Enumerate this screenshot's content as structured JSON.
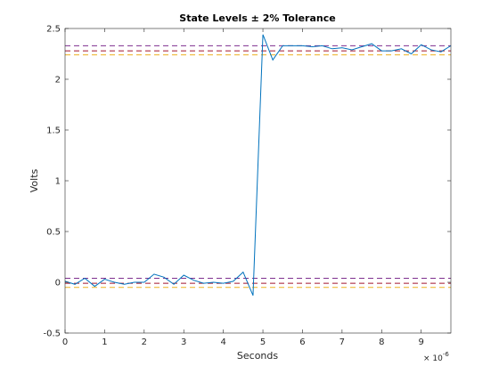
{
  "chart_data": {
    "type": "line",
    "title": "State Levels ± 2% Tolerance",
    "xlabel": "Seconds",
    "ylabel": "Volts",
    "x_exponent_label": "× 10",
    "x_exponent_power": "-6",
    "xlim": [
      0,
      9.75
    ],
    "ylim": [
      -0.5,
      2.5
    ],
    "x_ticks": [
      0,
      1,
      2,
      3,
      4,
      5,
      6,
      7,
      8,
      9
    ],
    "x_tick_labels": [
      "0",
      "1",
      "2",
      "3",
      "4",
      "5",
      "6",
      "7",
      "8",
      "9"
    ],
    "y_ticks": [
      -0.5,
      0,
      0.5,
      1,
      1.5,
      2,
      2.5
    ],
    "y_tick_labels": [
      "-0.5",
      "0",
      "0.5",
      "1",
      "1.5",
      "2",
      "2.5"
    ],
    "grid": false,
    "series": [
      {
        "color": "#0072bd",
        "x": [
          0,
          0.25,
          0.5,
          0.75,
          1,
          1.25,
          1.5,
          1.75,
          2,
          2.25,
          2.5,
          2.75,
          3,
          3.25,
          3.5,
          3.75,
          4,
          4.25,
          4.5,
          4.75,
          5,
          5.25,
          5.5,
          5.75,
          6,
          6.25,
          6.5,
          6.75,
          7,
          7.25,
          7.5,
          7.75,
          8,
          8.25,
          8.5,
          8.75,
          9,
          9.25,
          9.5,
          9.75
        ],
        "y": [
          0.01,
          -0.02,
          0.04,
          -0.04,
          0.03,
          0.0,
          -0.02,
          0.0,
          0.0,
          0.08,
          0.05,
          -0.02,
          0.07,
          0.02,
          -0.01,
          0.0,
          -0.01,
          0.01,
          0.1,
          -0.13,
          2.44,
          2.19,
          2.33,
          2.33,
          2.33,
          2.32,
          2.33,
          2.3,
          2.31,
          2.29,
          2.32,
          2.35,
          2.28,
          2.28,
          2.3,
          2.25,
          2.34,
          2.29,
          2.27,
          2.33
        ]
      }
    ],
    "reference_lines": [
      {
        "y": 2.33,
        "color": "#7e2f8e"
      },
      {
        "y": 2.28,
        "color": "#a2142f"
      },
      {
        "y": 2.24,
        "color": "#edb120"
      },
      {
        "y": 0.04,
        "color": "#7e2f8e"
      },
      {
        "y": -0.01,
        "color": "#a2142f"
      },
      {
        "y": -0.05,
        "color": "#edb120"
      }
    ]
  }
}
